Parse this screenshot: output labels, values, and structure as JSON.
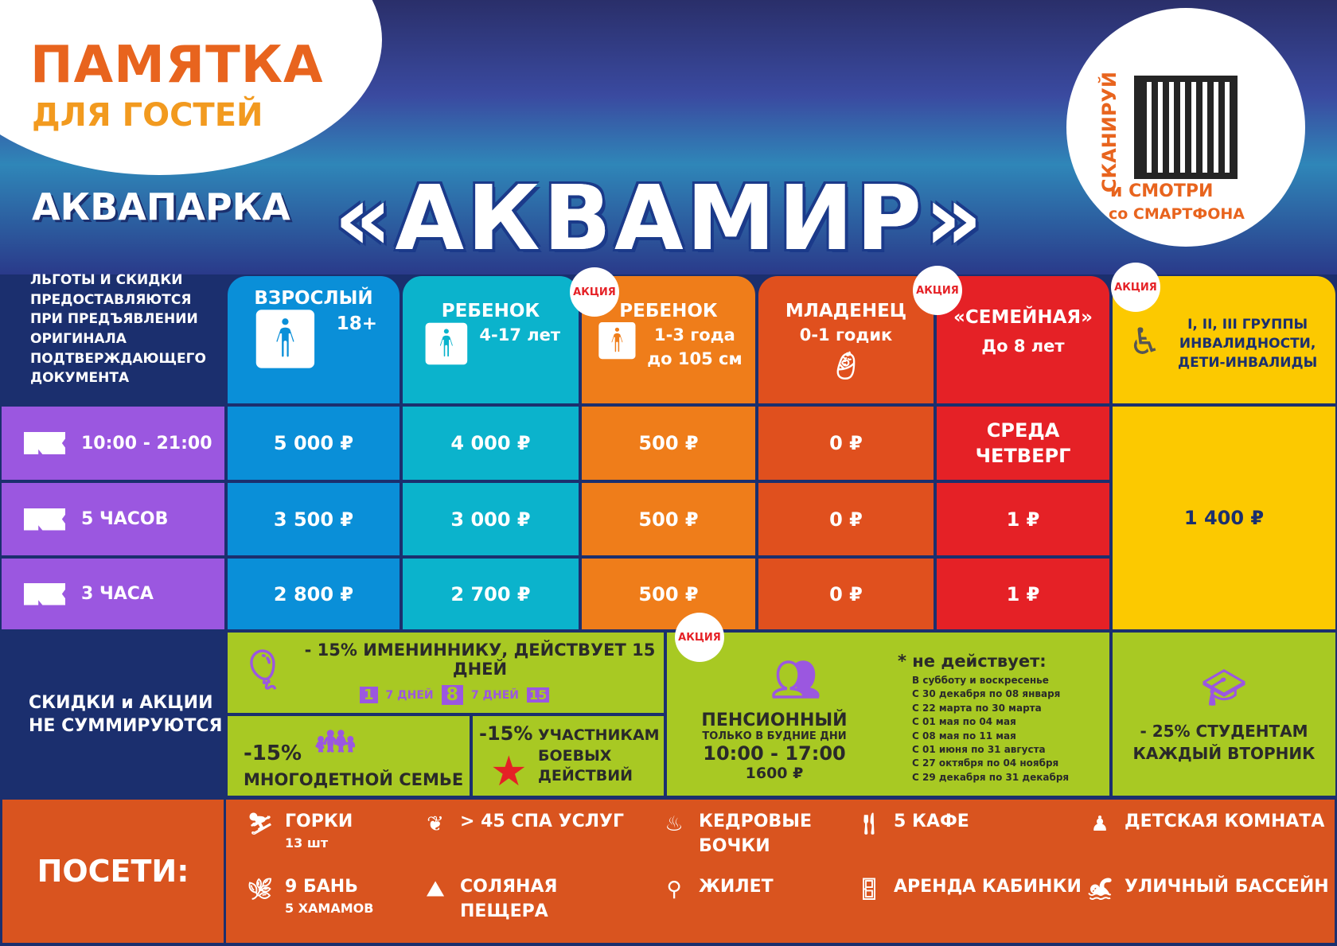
{
  "header": {
    "title_line1": "ПАМЯТКА",
    "title_line2": "ДЛЯ ГОСТЕЙ",
    "title_line3": "АКВАПАРКА",
    "brand": "«АКВАМИР»",
    "qr": {
      "vertical": "СКАНИРУЙ",
      "line1": "и СМОТРИ",
      "line2": "со СМАРТФОНА"
    }
  },
  "left_note": [
    "ЛЬГОТЫ И СКИДКИ",
    "ПРЕДОСТАВЛЯЮТСЯ",
    "ПРИ ПРЕДЪЯВЛЕНИИ",
    "ОРИГИНАЛА",
    "ПОДТВЕРЖДАЮЩЕГО",
    "ДОКУМЕНТА"
  ],
  "promo_badge": "АКЦИЯ",
  "columns": [
    {
      "title": "ВЗРОСЛЫЙ",
      "sub": "18+",
      "sub2": "",
      "color": "#0a8fd8",
      "promo": false,
      "prices": [
        "5 000 ₽",
        "3 500 ₽",
        "2 800 ₽"
      ]
    },
    {
      "title": "РЕБЕНОК",
      "sub": "4-17 лет",
      "sub2": "",
      "color": "#0bb3cc",
      "promo": false,
      "prices": [
        "4 000 ₽",
        "3 000 ₽",
        "2 700 ₽"
      ]
    },
    {
      "title": "РЕБЕНОК",
      "sub": "1-3 года",
      "sub2": "до 105 см",
      "color": "#ef7d1a",
      "promo": true,
      "prices": [
        "500 ₽",
        "500 ₽",
        "500 ₽"
      ]
    },
    {
      "title": "МЛАДЕНЕЦ",
      "sub": "0-1 годик",
      "sub2": "",
      "color": "#e0501e",
      "promo": true,
      "prices": [
        "0 ₽",
        "0 ₽",
        "0 ₽"
      ]
    },
    {
      "title": "«СЕМЕЙНАЯ»",
      "sub": "До 8 лет",
      "sub2": "",
      "color": "#e52126",
      "promo": true,
      "days": "СРЕДА ЧЕТВЕРГ",
      "prices": [
        "1 ₽",
        "1 ₽"
      ]
    },
    {
      "title": "I, II, III ГРУППЫ ИНВАЛИДНОСТИ, ДЕТИ-ИНВАЛИДЫ",
      "color": "#fcc900",
      "price": "1 400 ₽"
    }
  ],
  "durations": [
    "10:00 - 21:00",
    "5 ЧАСОВ",
    "3 ЧАСА"
  ],
  "discounts": {
    "label_line1": "СКИДКИ и АКЦИИ",
    "label_line2": "НЕ СУММИРУЮТСЯ",
    "birthday": "- 15% ИМЕНИННИКУ, ДЕЙСТВУЕТ 15 ДНЕЙ",
    "birthday_days": [
      "1",
      "7 ДНЕЙ",
      "8",
      "7 ДНЕЙ",
      "15"
    ],
    "large_family_pct": "-15%",
    "large_family": "МНОГОДЕТНОЙ СЕМЬЕ",
    "veterans_pct": "-15%",
    "veterans": "УЧАСТНИКАМ БОЕВЫХ ДЕЙСТВИЙ",
    "pension": {
      "title": "ПЕНСИОННЫЙ",
      "sub": "ТОЛЬКО В БУДНИЕ ДНИ",
      "hours": "10:00 - 17:00",
      "price": "1600 ₽",
      "exceptions_title": "* не действует:",
      "exceptions": [
        "В субботу и воскресенье",
        "С 30 декабря по 08 января",
        "С 22 марта по 30 марта",
        "С 01 мая по 04 мая",
        "С 08 мая по 11 мая",
        "С 01 июня по 31 августа",
        "С 27 октября по 04 ноября",
        "С 29 декабря по 31 декабря"
      ]
    },
    "students": "- 25% СТУДЕНТАМ",
    "students_sub": "КАЖДЫЙ ВТОРНИК"
  },
  "visit": {
    "label": "ПОСЕТИ:",
    "items": [
      {
        "icon": "slide-icon",
        "label": "ГОРКИ",
        "sub": "13 шт"
      },
      {
        "icon": "spa-icon",
        "label": "> 45 СПА УСЛУГ",
        "sub": ""
      },
      {
        "icon": "barrel-icon",
        "label": "КЕДРОВЫЕ БОЧКИ",
        "sub": ""
      },
      {
        "icon": "cutlery-icon",
        "label": "5 КАФЕ",
        "sub": ""
      },
      {
        "icon": "child-icon",
        "label": "ДЕТСКАЯ КОМНАТА",
        "sub": ""
      },
      {
        "icon": "broom-icon",
        "label": "9 БАНЬ",
        "sub": "5 ХАМАМОВ"
      },
      {
        "icon": "cave-icon",
        "label": "СОЛЯНАЯ ПЕЩЕРА",
        "sub": ""
      },
      {
        "icon": "vest-icon",
        "label": "ЖИЛЕТ",
        "sub": ""
      },
      {
        "icon": "door-icon",
        "label": "АРЕНДА КАБИНКИ",
        "sub": ""
      },
      {
        "icon": "pool-icon",
        "label": "УЛИЧНЫЙ БАССЕЙН",
        "sub": ""
      }
    ]
  }
}
